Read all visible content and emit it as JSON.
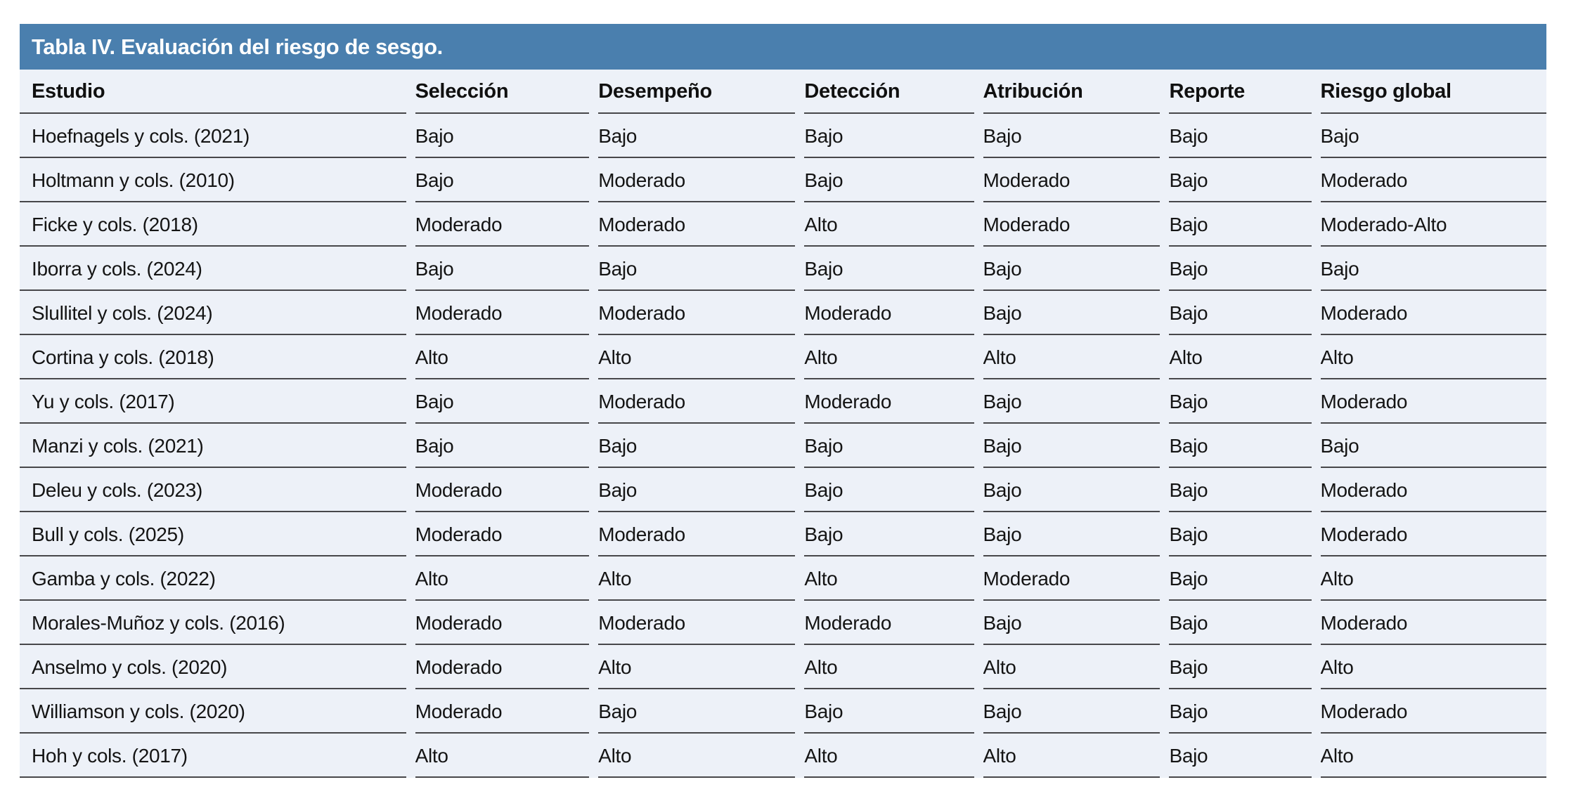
{
  "table": {
    "title": "Tabla IV. Evaluación del riesgo de sesgo.",
    "columns": [
      "Estudio",
      "Selección",
      "Desempeño",
      "Detección",
      "Atribución",
      "Reporte",
      "Riesgo global"
    ],
    "column_widths": [
      "25.9%",
      "12.0%",
      "13.5%",
      "11.7%",
      "12.2%",
      "9.9%",
      "14.8%"
    ],
    "rows": [
      [
        "Hoefnagels y cols. (2021)",
        "Bajo",
        "Bajo",
        "Bajo",
        "Bajo",
        "Bajo",
        "Bajo"
      ],
      [
        "Holtmann y cols. (2010)",
        "Bajo",
        "Moderado",
        "Bajo",
        "Moderado",
        "Bajo",
        "Moderado"
      ],
      [
        "Ficke y cols. (2018)",
        "Moderado",
        "Moderado",
        "Alto",
        "Moderado",
        "Bajo",
        "Moderado-Alto"
      ],
      [
        "Iborra y cols. (2024)",
        "Bajo",
        "Bajo",
        "Bajo",
        "Bajo",
        "Bajo",
        "Bajo"
      ],
      [
        "Slullitel y cols. (2024)",
        "Moderado",
        "Moderado",
        "Moderado",
        "Bajo",
        "Bajo",
        "Moderado"
      ],
      [
        "Cortina y cols. (2018)",
        "Alto",
        "Alto",
        "Alto",
        "Alto",
        "Alto",
        "Alto"
      ],
      [
        "Yu y cols. (2017)",
        "Bajo",
        "Moderado",
        "Moderado",
        "Bajo",
        "Bajo",
        "Moderado"
      ],
      [
        "Manzi y cols. (2021)",
        "Bajo",
        "Bajo",
        "Bajo",
        "Bajo",
        "Bajo",
        "Bajo"
      ],
      [
        "Deleu y cols. (2023)",
        "Moderado",
        "Bajo",
        "Bajo",
        "Bajo",
        "Bajo",
        "Moderado"
      ],
      [
        "Bull y cols. (2025)",
        "Moderado",
        "Moderado",
        "Bajo",
        "Bajo",
        "Bajo",
        "Moderado"
      ],
      [
        "Gamba y cols. (2022)",
        "Alto",
        "Alto",
        "Alto",
        "Moderado",
        "Bajo",
        "Alto"
      ],
      [
        "Morales-Muñoz y cols. (2016)",
        "Moderado",
        "Moderado",
        "Moderado",
        "Bajo",
        "Bajo",
        "Moderado"
      ],
      [
        "Anselmo y cols. (2020)",
        "Moderado",
        "Alto",
        "Alto",
        "Alto",
        "Bajo",
        "Alto"
      ],
      [
        "Williamson y cols. (2020)",
        "Moderado",
        "Bajo",
        "Bajo",
        "Bajo",
        "Bajo",
        "Moderado"
      ],
      [
        "Hoh y cols. (2017)",
        "Alto",
        "Alto",
        "Alto",
        "Alto",
        "Bajo",
        "Alto"
      ]
    ]
  },
  "colors": {
    "title_bar_background": "#4a7fae",
    "title_text": "#ffffff",
    "row_background": "#edf1f8",
    "separator_line": "#47474a",
    "body_text": "#141414"
  }
}
